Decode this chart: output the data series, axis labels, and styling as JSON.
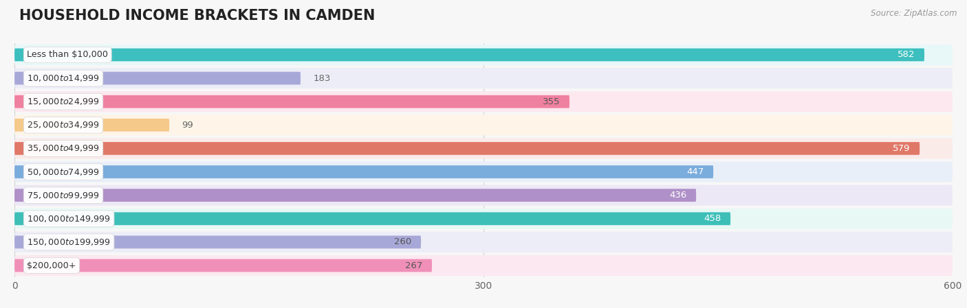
{
  "title": "HOUSEHOLD INCOME BRACKETS IN CAMDEN",
  "source": "Source: ZipAtlas.com",
  "categories": [
    "Less than $10,000",
    "$10,000 to $14,999",
    "$15,000 to $24,999",
    "$25,000 to $34,999",
    "$35,000 to $49,999",
    "$50,000 to $74,999",
    "$75,000 to $99,999",
    "$100,000 to $149,999",
    "$150,000 to $199,999",
    "$200,000+"
  ],
  "values": [
    582,
    183,
    355,
    99,
    579,
    447,
    436,
    458,
    260,
    267
  ],
  "bar_colors": [
    "#3dbfbf",
    "#a8a8d8",
    "#f080a0",
    "#f5c98a",
    "#e07868",
    "#7aacdc",
    "#b090c8",
    "#3dbfb8",
    "#a8a8d8",
    "#f090b8"
  ],
  "row_bg_colors": [
    "#e8f8f8",
    "#ededf8",
    "#fce8ee",
    "#fef5e8",
    "#faeae8",
    "#e8eff8",
    "#ede8f5",
    "#e8f8f5",
    "#ededf8",
    "#fce8f0"
  ],
  "label_colors": [
    "white",
    "white",
    "#555555",
    "#555555",
    "white",
    "white",
    "white",
    "white",
    "#555555",
    "#555555"
  ],
  "xlim": [
    0,
    600
  ],
  "xticks": [
    0,
    300,
    600
  ],
  "background_color": "#f7f7f7",
  "title_fontsize": 15,
  "label_fontsize": 9.5
}
